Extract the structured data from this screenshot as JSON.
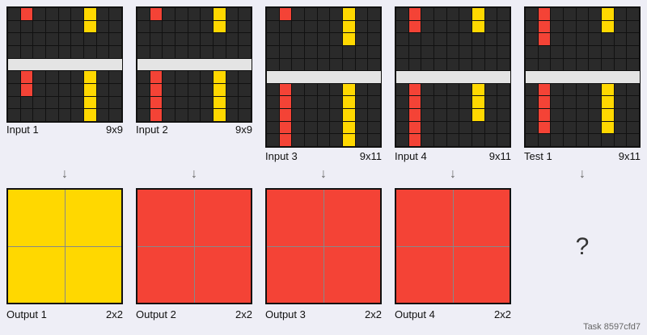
{
  "palette": {
    "0": "#2a2a2a",
    "2": "#f44336",
    "4": "#ffd800",
    "5": "#e4e4e4"
  },
  "pairs": [
    {
      "input_label": "Input 1",
      "input_size": "9x9",
      "output_label": "Output 1",
      "output_size": "2x2",
      "input_grid": [
        [
          0,
          0,
          0,
          0,
          0,
          0,
          0,
          0,
          0
        ],
        [
          0,
          0,
          0,
          0,
          0,
          0,
          0,
          0,
          0
        ],
        [
          0,
          0,
          0,
          0,
          0,
          0,
          0,
          0,
          0
        ],
        [
          0,
          0,
          0,
          0,
          0,
          0,
          0,
          0,
          0
        ],
        [
          0,
          0,
          0,
          0,
          0,
          0,
          0,
          0,
          0
        ],
        [
          0,
          0,
          0,
          0,
          0,
          0,
          0,
          0,
          0
        ],
        [
          0,
          0,
          0,
          0,
          0,
          0,
          0,
          0,
          0
        ],
        [
          0,
          0,
          0,
          0,
          0,
          0,
          0,
          0,
          0
        ],
        [
          0,
          0,
          0,
          0,
          0,
          0,
          0,
          0,
          0
        ]
      ],
      "input_rows_red": [
        [
          0,
          0
        ],
        [
          5,
          6
        ]
      ],
      "input_rows_yellow": [
        [
          0,
          1
        ],
        [
          5,
          8
        ]
      ],
      "output_grid": [
        [
          4,
          4
        ],
        [
          4,
          4
        ]
      ]
    },
    {
      "input_label": "Input 2",
      "input_size": "9x9",
      "output_label": "Output 2",
      "output_size": "2x2",
      "input_rows_red": [
        [
          0,
          0
        ],
        [
          5,
          8
        ]
      ],
      "input_rows_yellow": [
        [
          0,
          1
        ],
        [
          5,
          8
        ]
      ],
      "output_grid": [
        [
          2,
          2
        ],
        [
          2,
          2
        ]
      ]
    },
    {
      "input_label": "Input 3",
      "input_size": "9x11",
      "output_label": "Output 3",
      "output_size": "2x2",
      "input_rows_red": [
        [
          0,
          0
        ],
        [
          6,
          10
        ]
      ],
      "input_rows_yellow": [
        [
          0,
          2
        ],
        [
          6,
          10
        ]
      ],
      "output_grid": [
        [
          2,
          2
        ],
        [
          2,
          2
        ]
      ]
    },
    {
      "input_label": "Input 4",
      "input_size": "9x11",
      "output_label": "Output 4",
      "output_size": "2x2",
      "input_rows_red": [
        [
          0,
          1
        ],
        [
          6,
          10
        ]
      ],
      "input_rows_yellow": [
        [
          0,
          1
        ],
        [
          6,
          8
        ]
      ],
      "output_grid": [
        [
          2,
          2
        ],
        [
          2,
          2
        ]
      ]
    }
  ],
  "test": {
    "input_label": "Test 1",
    "input_size": "9x11",
    "input_rows_red": [
      [
        0,
        2
      ],
      [
        6,
        9
      ]
    ],
    "input_rows_yellow": [
      [
        0,
        1
      ],
      [
        6,
        9
      ]
    ],
    "output_placeholder": "?"
  },
  "footer": {
    "task_label": "Task 8597cfd7"
  }
}
